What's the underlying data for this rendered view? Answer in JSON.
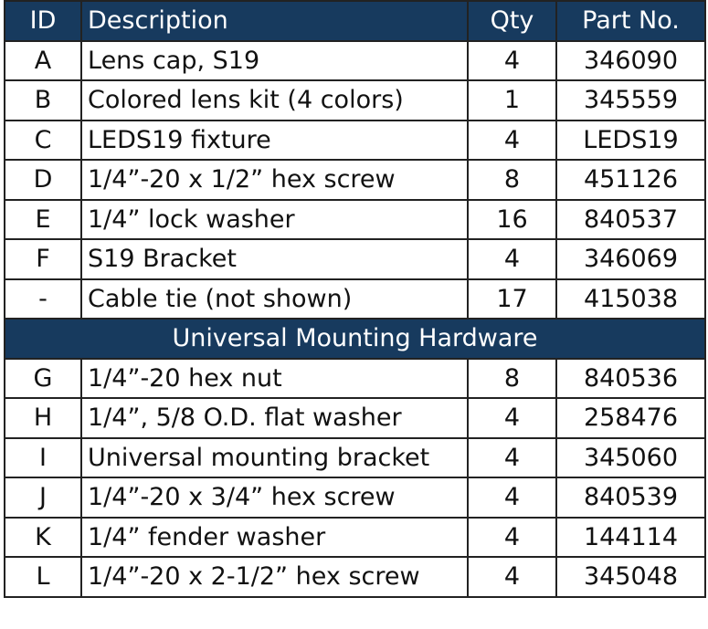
{
  "header_color": "#173a5e",
  "columns": [
    "ID",
    "Description",
    "Qty",
    "Part No."
  ],
  "rows": [
    {
      "id": "A",
      "desc": "Lens cap, S19",
      "qty": "4",
      "part": "346090"
    },
    {
      "id": "B",
      "desc": "Colored lens kit (4 colors)",
      "qty": "1",
      "part": "345559"
    },
    {
      "id": "C",
      "desc": "LEDS19 fixture",
      "qty": "4",
      "part": "LEDS19"
    },
    {
      "id": "D",
      "desc": "1/4”-20 x 1/2” hex screw",
      "qty": "8",
      "part": "451126"
    },
    {
      "id": "E",
      "desc": "1/4” lock washer",
      "qty": "16",
      "part": "840537"
    },
    {
      "id": "F",
      "desc": "S19 Bracket",
      "qty": "4",
      "part": "346069"
    },
    {
      "id": "-",
      "desc": "Cable tie (not shown)",
      "qty": "17",
      "part": "415038"
    }
  ],
  "section_title": "Universal Mounting Hardware",
  "section_rows": [
    {
      "id": "G",
      "desc": "1/4”-20 hex nut",
      "qty": "8",
      "part": "840536"
    },
    {
      "id": "H",
      "desc": "1/4”, 5/8 O.D. flat washer",
      "qty": "4",
      "part": "258476"
    },
    {
      "id": "I",
      "desc": "Universal mounting bracket",
      "qty": "4",
      "part": "345060"
    },
    {
      "id": "J",
      "desc": "1/4”-20 x 3/4” hex screw",
      "qty": "4",
      "part": "840539"
    },
    {
      "id": "K",
      "desc": "1/4” fender washer",
      "qty": "4",
      "part": "144114"
    },
    {
      "id": "L",
      "desc": "1/4”-20 x 2-1/2” hex screw",
      "qty": "4",
      "part": "345048"
    }
  ]
}
